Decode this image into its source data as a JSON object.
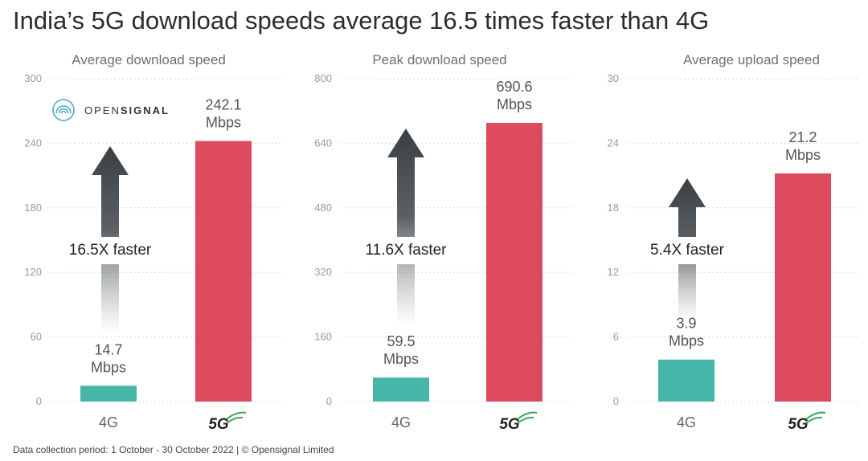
{
  "title": "India’s 5G download speeds average 16.5 times faster than 4G",
  "footer": "Data collection period: 1 October - 30 October 2022  |  © Opensignal Limited",
  "logo": {
    "text_light": "OPEN",
    "text_bold": "SIGNAL",
    "icon": "opensignal-logo-icon"
  },
  "colors": {
    "g4": "#45b6a8",
    "g5": "#dd4a5e",
    "arrow": "#3a3f43",
    "grid": "#d9d9d9"
  },
  "chart_data": [
    {
      "type": "bar",
      "title": "Average download speed",
      "categories": [
        "4G",
        "5G"
      ],
      "values": [
        14.7,
        242.1
      ],
      "value_labels": [
        "14.7",
        "242.1"
      ],
      "unit": "Mbps",
      "ylim": [
        0,
        300
      ],
      "yticks": [
        "0",
        "60",
        "120",
        "180",
        "240",
        "300"
      ],
      "annotation": "16.5X faster",
      "grid": true
    },
    {
      "type": "bar",
      "title": "Peak download speed",
      "categories": [
        "4G",
        "5G"
      ],
      "values": [
        59.5,
        690.6
      ],
      "value_labels": [
        "59.5",
        "690.6"
      ],
      "unit": "Mbps",
      "ylim": [
        0,
        800
      ],
      "yticks": [
        "0",
        "160",
        "320",
        "480",
        "640",
        "800"
      ],
      "annotation": "11.6X faster",
      "grid": true
    },
    {
      "type": "bar",
      "title": "Average upload speed",
      "categories": [
        "4G",
        "5G"
      ],
      "values": [
        3.9,
        21.2
      ],
      "value_labels": [
        "3.9",
        "21.2"
      ],
      "unit": "Mbps",
      "ylim": [
        0,
        30
      ],
      "yticks": [
        "0",
        "6",
        "12",
        "18",
        "24",
        "30"
      ],
      "annotation": "5.4X faster",
      "grid": true
    }
  ]
}
